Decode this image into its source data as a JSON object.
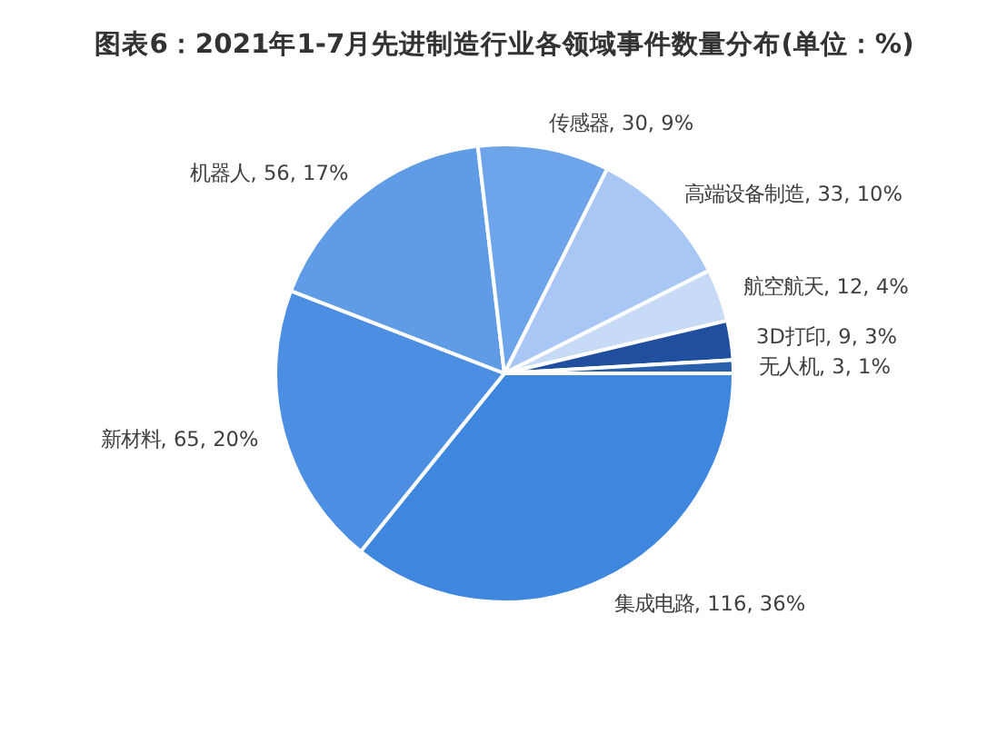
{
  "chart_data": {
    "type": "pie",
    "title": "图表6：2021年1-7月先进制造行业各领域事件数量分布(单位：%)",
    "categories": [
      "集成电路",
      "新材料",
      "机器人",
      "传感器",
      "高端设备制造",
      "航空航天",
      "3D打印",
      "无人机"
    ],
    "values": [
      116,
      65,
      56,
      30,
      33,
      12,
      9,
      3
    ],
    "value_labels": [
      "116, 36%",
      "65, 20%",
      "56, 17%",
      "30, 9%",
      "33, 10%",
      "12, 4%",
      "9, 3%",
      "3, 1%"
    ],
    "colors": [
      "#3f86df",
      "#4c8fe2",
      "#609be6",
      "#6ea4ea",
      "#a8c7f4",
      "#c8dbf6",
      "#1f4f9e",
      "#2a5fae"
    ]
  }
}
